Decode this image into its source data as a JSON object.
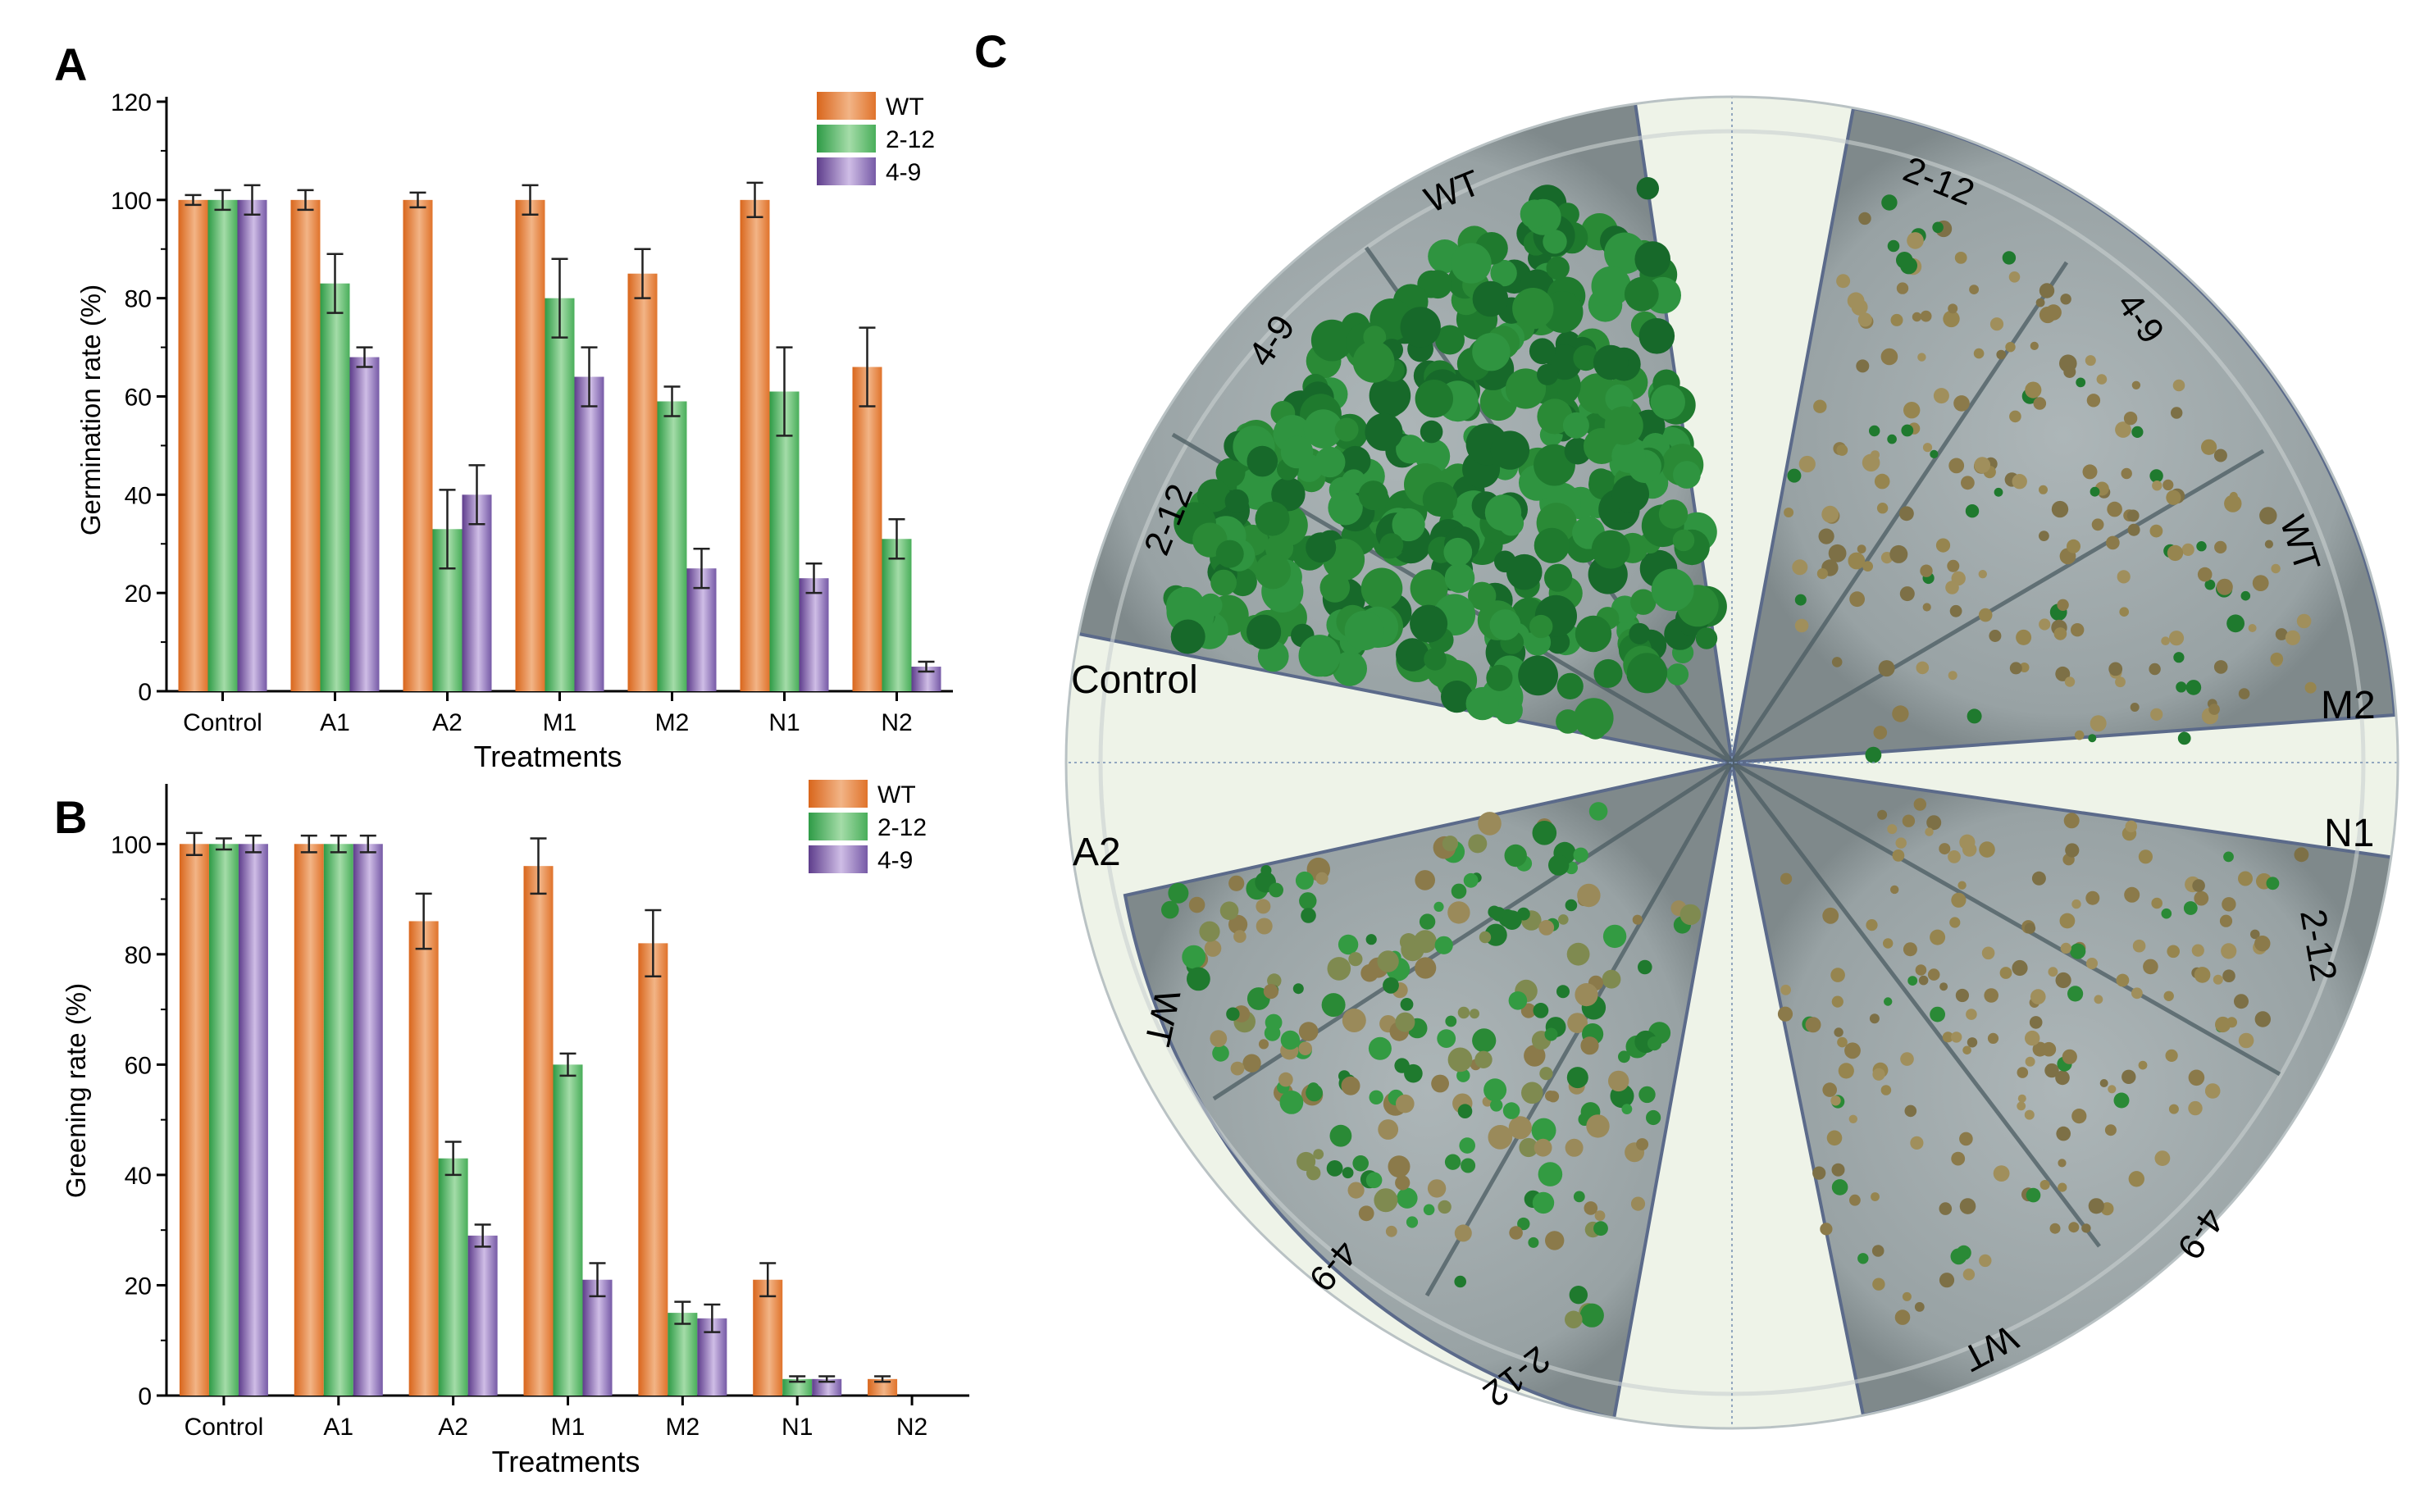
{
  "panel_labels": {
    "a": "A",
    "b": "B",
    "c": "C"
  },
  "palette": {
    "wt": "#e0732b",
    "line_212": "#4db05c",
    "line_49": "#7a5aa6",
    "plate_green": "#1f7a2e",
    "plate_bg": "#98a2a4"
  },
  "chart_data": [
    {
      "id": "A",
      "type": "bar",
      "ylabel": "Germination rate (%)",
      "xlabel": "Treatments",
      "ylim": [
        0,
        120
      ],
      "yticks": [
        "0",
        "20",
        "40",
        "60",
        "80",
        "100",
        "120"
      ],
      "categories": [
        "Control",
        "A1",
        "A2",
        "M1",
        "M2",
        "N1",
        "N2"
      ],
      "legend": [
        "WT",
        "2-12",
        "4-9"
      ],
      "legend_position": "top-right",
      "series": [
        {
          "name": "WT",
          "values": [
            100,
            100,
            100,
            100,
            85,
            100,
            66
          ],
          "errors": [
            1,
            2,
            1.5,
            3,
            5,
            3.5,
            8
          ]
        },
        {
          "name": "2-12",
          "values": [
            100,
            83,
            33,
            80,
            59,
            61,
            31
          ],
          "errors": [
            2,
            6,
            8,
            8,
            3,
            9,
            4
          ]
        },
        {
          "name": "4-9",
          "values": [
            100,
            68,
            40,
            64,
            25,
            23,
            5
          ],
          "errors": [
            3,
            2,
            6,
            6,
            4,
            3,
            1
          ]
        }
      ]
    },
    {
      "id": "B",
      "type": "bar",
      "ylabel": "Greening rate (%)",
      "xlabel": "Treatments",
      "ylim": [
        0,
        110
      ],
      "yticks": [
        "0",
        "20",
        "40",
        "60",
        "80",
        "100"
      ],
      "categories": [
        "Control",
        "A1",
        "A2",
        "M1",
        "M2",
        "N1",
        "N2"
      ],
      "legend": [
        "WT",
        "2-12",
        "4-9"
      ],
      "legend_position": "top-right",
      "series": [
        {
          "name": "WT",
          "values": [
            100,
            100,
            86,
            96,
            82,
            21,
            3
          ],
          "errors": [
            2,
            1.5,
            5,
            5,
            6,
            3,
            0.5
          ]
        },
        {
          "name": "2-12",
          "values": [
            100,
            100,
            43,
            60,
            15,
            3,
            0
          ],
          "errors": [
            1,
            1.5,
            3,
            2,
            2,
            0.5,
            0
          ]
        },
        {
          "name": "4-9",
          "values": [
            100,
            100,
            29,
            21,
            14,
            3,
            0
          ],
          "errors": [
            1.5,
            1.5,
            2,
            3,
            2.5,
            0.5,
            0
          ]
        }
      ]
    }
  ],
  "plate": {
    "sectors": [
      "Control",
      "M2",
      "N1",
      "A2"
    ],
    "labels": {
      "control": [
        "WT",
        "4-9",
        "2-12"
      ],
      "m2": [
        "2-12",
        "4-9",
        "WT"
      ],
      "n1": [
        "2-12",
        "4-9",
        "WT"
      ],
      "a2": [
        "WT",
        "4-9",
        "2-12"
      ]
    }
  }
}
